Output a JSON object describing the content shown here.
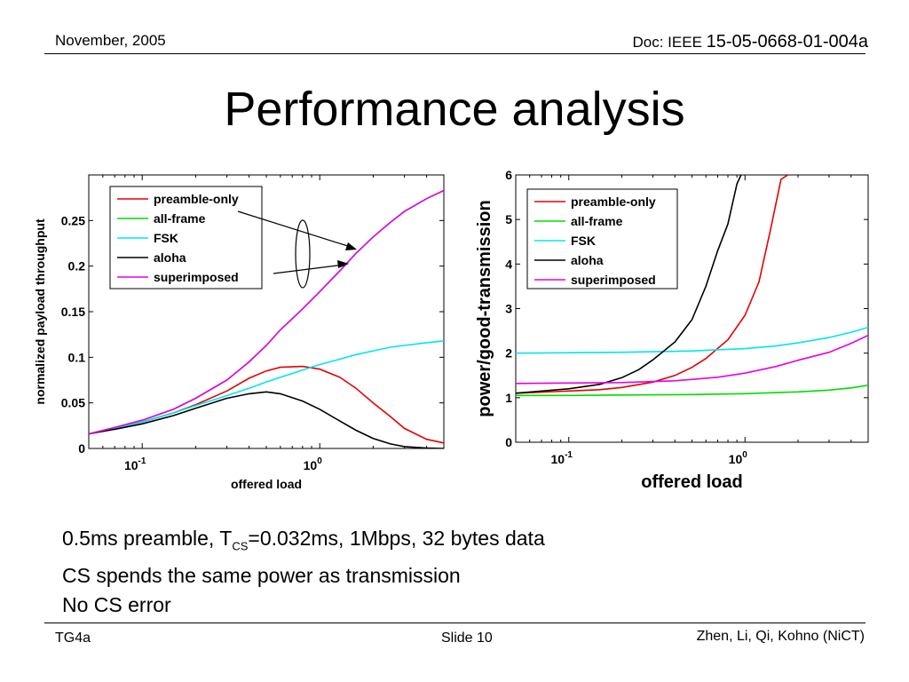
{
  "header": {
    "date": "November, 2005",
    "doc_prefix": "Doc: IEEE ",
    "doc_number": "15-05-0668-01-004a"
  },
  "title": "Performance analysis",
  "bullets": {
    "line1_a": "0.5ms preamble, T",
    "line1_sub": "CS",
    "line1_b": "=0.032ms, 1Mbps, 32 bytes data",
    "line2": "CS spends the same power as transmission",
    "line3": "No CS error"
  },
  "footer": {
    "left": "TG4a",
    "center": "Slide 10",
    "right": "Zhen, Li, Qi, Kohno (NiCT)"
  },
  "chart_data": [
    {
      "type": "line",
      "xlabel": "offered load",
      "ylabel": "normalized payload throughput",
      "xscale": "log",
      "xlim": [
        0.05,
        5
      ],
      "ylim": [
        0,
        0.3
      ],
      "xticks": [
        {
          "base": "10",
          "exp": "-1"
        },
        {
          "base": "10",
          "exp": "0"
        }
      ],
      "yticks": [
        "0",
        "0.05",
        "0.1",
        "0.15",
        "0.2",
        "0.25"
      ],
      "ytick_values": [
        0,
        0.05,
        0.1,
        0.15,
        0.2,
        0.25
      ],
      "legend_position": "top-left",
      "annotation": "ellipse with two arrows pointing to overlapping all-frame / superimposed curves",
      "x": [
        0.05,
        0.07,
        0.1,
        0.15,
        0.2,
        0.3,
        0.4,
        0.5,
        0.6,
        0.8,
        1.0,
        1.3,
        1.6,
        2.0,
        2.5,
        3.0,
        4.0,
        5.0
      ],
      "series": [
        {
          "name": "preamble-only",
          "color": "#e60000",
          "values": [
            0.016,
            0.022,
            0.029,
            0.039,
            0.048,
            0.063,
            0.077,
            0.085,
            0.089,
            0.09,
            0.087,
            0.078,
            0.066,
            0.05,
            0.035,
            0.022,
            0.01,
            0.006
          ]
        },
        {
          "name": "all-frame",
          "color": "#00dd00",
          "values": [
            0.016,
            0.023,
            0.031,
            0.043,
            0.055,
            0.075,
            0.095,
            0.113,
            0.13,
            0.153,
            0.172,
            0.195,
            0.214,
            0.232,
            0.248,
            0.26,
            0.274,
            0.283
          ]
        },
        {
          "name": "FSK",
          "color": "#00e5ee",
          "values": [
            0.016,
            0.022,
            0.029,
            0.039,
            0.047,
            0.058,
            0.066,
            0.073,
            0.078,
            0.086,
            0.092,
            0.098,
            0.103,
            0.107,
            0.111,
            0.113,
            0.116,
            0.118
          ]
        },
        {
          "name": "aloha",
          "color": "#000000",
          "values": [
            0.016,
            0.021,
            0.027,
            0.036,
            0.044,
            0.055,
            0.06,
            0.062,
            0.06,
            0.052,
            0.043,
            0.03,
            0.02,
            0.011,
            0.005,
            0.002,
            0.0005,
            0.0
          ]
        },
        {
          "name": "superimposed",
          "color": "#e600e6",
          "values": [
            0.016,
            0.023,
            0.031,
            0.043,
            0.055,
            0.075,
            0.095,
            0.113,
            0.13,
            0.153,
            0.172,
            0.195,
            0.214,
            0.232,
            0.248,
            0.26,
            0.274,
            0.283
          ]
        }
      ]
    },
    {
      "type": "line",
      "xlabel": "offered load",
      "ylabel": "power/good-transmission",
      "xscale": "log",
      "xlim": [
        0.05,
        5
      ],
      "ylim": [
        0,
        6
      ],
      "xticks": [
        {
          "base": "10",
          "exp": "-1"
        },
        {
          "base": "10",
          "exp": "0"
        }
      ],
      "yticks": [
        "0",
        "1",
        "2",
        "3",
        "4",
        "5",
        "6"
      ],
      "ytick_values": [
        0,
        1,
        2,
        3,
        4,
        5,
        6
      ],
      "legend_position": "top-right",
      "series": [
        {
          "name": "preamble-only",
          "color": "#e60000",
          "x": [
            0.05,
            0.1,
            0.15,
            0.2,
            0.3,
            0.4,
            0.5,
            0.6,
            0.8,
            1.0,
            1.2,
            1.4,
            1.6,
            1.75
          ],
          "values": [
            1.1,
            1.15,
            1.18,
            1.23,
            1.35,
            1.5,
            1.68,
            1.88,
            2.3,
            2.85,
            3.6,
            4.8,
            5.9,
            6.0
          ]
        },
        {
          "name": "all-frame",
          "color": "#00dd00",
          "x": [
            0.05,
            0.1,
            0.2,
            0.5,
            1.0,
            2.0,
            3.0,
            4.0,
            5.0
          ],
          "values": [
            1.05,
            1.05,
            1.06,
            1.07,
            1.09,
            1.13,
            1.17,
            1.22,
            1.28
          ]
        },
        {
          "name": "FSK",
          "color": "#00e5ee",
          "x": [
            0.05,
            0.1,
            0.2,
            0.5,
            1.0,
            1.5,
            2.0,
            3.0,
            4.0,
            5.0
          ],
          "values": [
            2.0,
            2.01,
            2.02,
            2.05,
            2.1,
            2.16,
            2.23,
            2.35,
            2.47,
            2.58
          ]
        },
        {
          "name": "aloha",
          "color": "#000000",
          "x": [
            0.05,
            0.1,
            0.15,
            0.2,
            0.25,
            0.3,
            0.4,
            0.5,
            0.6,
            0.7,
            0.8,
            0.9,
            0.95
          ],
          "values": [
            1.1,
            1.2,
            1.3,
            1.45,
            1.63,
            1.85,
            2.25,
            2.75,
            3.5,
            4.3,
            4.9,
            5.8,
            6.0
          ]
        },
        {
          "name": "superimposed",
          "color": "#e600e6",
          "x": [
            0.05,
            0.1,
            0.2,
            0.4,
            0.7,
            1.0,
            1.5,
            2.0,
            3.0,
            4.0,
            5.0
          ],
          "values": [
            1.32,
            1.33,
            1.34,
            1.38,
            1.46,
            1.55,
            1.7,
            1.84,
            2.02,
            2.22,
            2.4
          ]
        }
      ]
    }
  ]
}
